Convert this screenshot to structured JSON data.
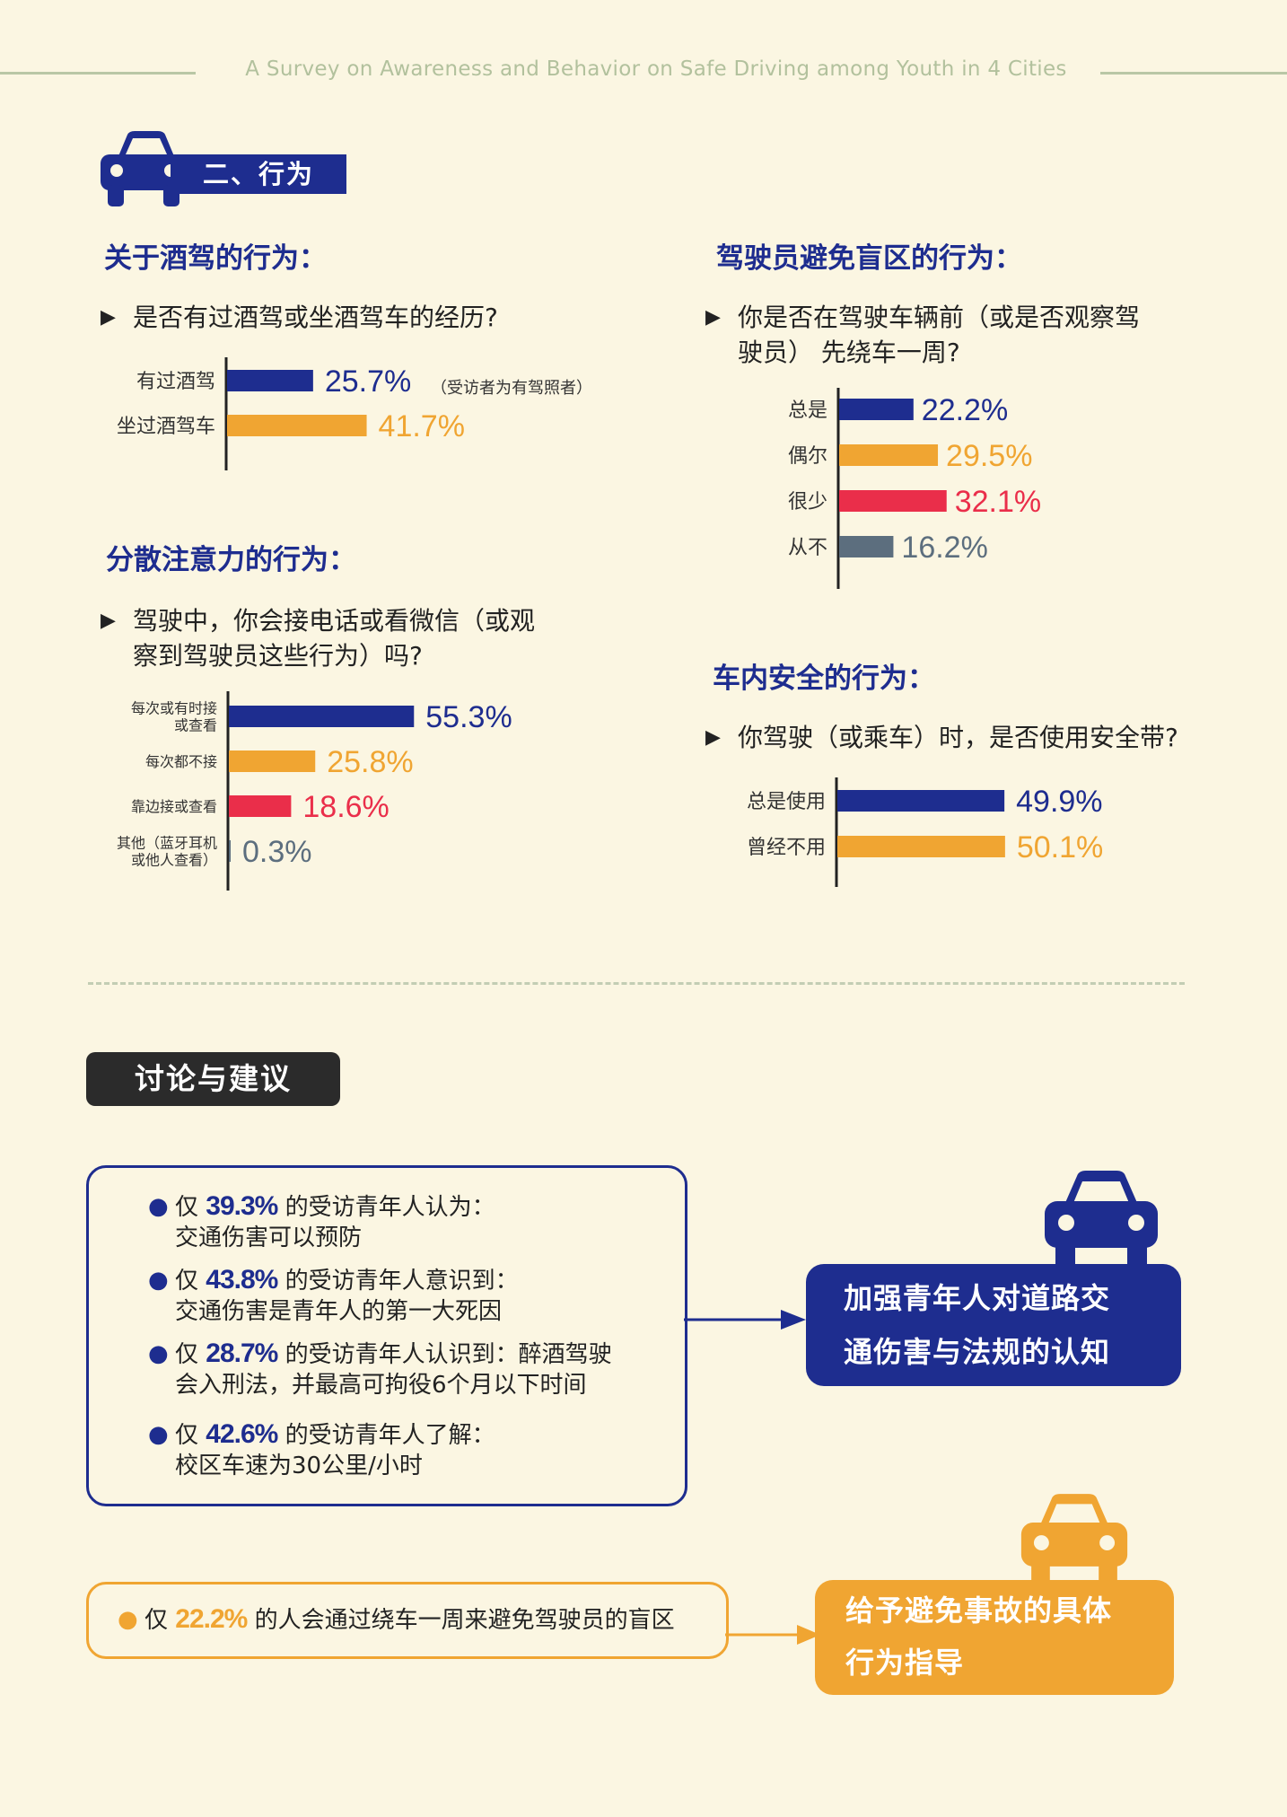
{
  "header": {
    "title": "A Survey on Awareness and Behavior on Safe Driving among Youth in 4 Cities"
  },
  "section": {
    "label": "二、行为"
  },
  "drunk": {
    "heading": "关于酒驾的行为：",
    "question": "是否有过酒驾或坐酒驾车的经历?",
    "note": "（受访者为有驾照者）"
  },
  "distract": {
    "heading": "分散注意力的行为：",
    "question_line1": "驾驶中，你会接电话或看微信（或观",
    "question_line2": "察到驾驶员这些行为）吗?"
  },
  "blind": {
    "heading": "驾驶员避免盲区的行为：",
    "question_line1": "你是否在驾驶车辆前（或是否观察驾",
    "question_line2": "驶员） 先绕车一周?"
  },
  "belt": {
    "heading": "车内安全的行为：",
    "question": "你驾驶（或乘车）时，是否使用安全带?"
  },
  "chart_data": [
    {
      "id": "drunk",
      "type": "bar",
      "orientation": "horizontal",
      "categories": [
        [
          "有过酒驾"
        ],
        [
          "坐过酒驾车"
        ]
      ],
      "values": [
        25.7,
        41.7
      ],
      "labels": [
        "25.7%",
        "41.7%"
      ],
      "colors": [
        "#1e2d8f",
        "#f0a532"
      ],
      "xlim": [
        0,
        100
      ]
    },
    {
      "id": "distract",
      "type": "bar",
      "orientation": "horizontal",
      "categories": [
        [
          "每次或有时接",
          "或查看"
        ],
        [
          "每次都不接"
        ],
        [
          "靠边接或查看"
        ],
        [
          "其他（蓝牙耳机",
          "或他人查看）"
        ]
      ],
      "values": [
        55.3,
        25.8,
        18.6,
        0.3
      ],
      "labels": [
        "55.3%",
        "25.8%",
        "18.6%",
        "0.3%"
      ],
      "colors": [
        "#1e2d8f",
        "#f0a532",
        "#ea2e4a",
        "#5c6e7e"
      ],
      "xlim": [
        0,
        100
      ]
    },
    {
      "id": "blind",
      "type": "bar",
      "orientation": "horizontal",
      "categories": [
        [
          "总是"
        ],
        [
          "偶尔"
        ],
        [
          "很少"
        ],
        [
          "从不"
        ]
      ],
      "values": [
        22.2,
        29.5,
        32.1,
        16.2
      ],
      "labels": [
        "22.2%",
        "29.5%",
        "32.1%",
        "16.2%"
      ],
      "colors": [
        "#1e2d8f",
        "#f0a532",
        "#ea2e4a",
        "#5c6e7e"
      ],
      "xlim": [
        0,
        100
      ]
    },
    {
      "id": "belt",
      "type": "bar",
      "orientation": "horizontal",
      "categories": [
        [
          "总是使用"
        ],
        [
          "曾经不用"
        ]
      ],
      "values": [
        49.9,
        50.1
      ],
      "labels": [
        "49.9%",
        "50.1%"
      ],
      "colors": [
        "#1e2d8f",
        "#f0a532"
      ],
      "xlim": [
        0,
        100
      ]
    }
  ],
  "discussion": {
    "label": "讨论与建议",
    "items": [
      {
        "pre": "仅",
        "pct": "39.3%",
        "post": "的受访青年人认为：",
        "line2": "交通伤害可以预防"
      },
      {
        "pre": "仅",
        "pct": "43.8%",
        "post": "的受访青年人意识到：",
        "line2": "交通伤害是青年人的第一大死因"
      },
      {
        "pre": "仅",
        "pct": "28.7%",
        "post": "的受访青年人认识到：醉酒驾驶",
        "line2": "会入刑法，并最高可拘役6个月以下时间"
      },
      {
        "pre": "仅",
        "pct": "42.6%",
        "post": "的受访青年人了解：",
        "line2": "校区车速为30公里/小时"
      }
    ],
    "item5": {
      "pre": "仅",
      "pct": "22.2%",
      "post": "的人会通过绕车一周来避免驾驶员的盲区"
    },
    "conclusion1_line1": "加强青年人对道路交",
    "conclusion1_line2": "通伤害与法规的认知",
    "conclusion2_line1": "给予避免事故的具体",
    "conclusion2_line2": "行为指导"
  },
  "icons": {
    "section": "car-icon",
    "conclusion": "car-icon"
  }
}
